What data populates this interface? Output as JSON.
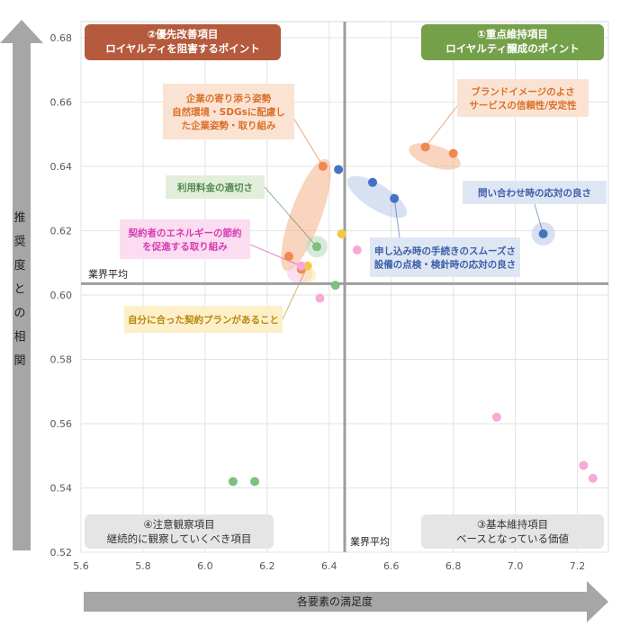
{
  "chart_data": {
    "type": "scatter",
    "xlabel": "各要素の満足度",
    "ylabel_chars": [
      "推",
      "奨",
      "度",
      "と",
      "の",
      "相",
      "関"
    ],
    "xlim": [
      5.6,
      7.3
    ],
    "ylim": [
      0.52,
      0.685
    ],
    "x_ticks": [
      5.6,
      5.8,
      6.0,
      6.2,
      6.4,
      6.6,
      6.8,
      7.0,
      7.2
    ],
    "y_ticks": [
      0.52,
      0.54,
      0.56,
      0.58,
      0.6,
      0.62,
      0.64,
      0.66,
      0.68
    ],
    "x_tick_labels": [
      "5.6",
      "5.8",
      "6.0",
      "6.2",
      "6.4",
      "6.6",
      "6.8",
      "7.0",
      "7.2"
    ],
    "y_tick_labels": [
      "0.52",
      "0.54",
      "0.56",
      "0.58",
      "0.60",
      "0.62",
      "0.64",
      "0.66",
      "0.68"
    ],
    "x_average": 6.45,
    "y_average": 0.6035,
    "average_label_x": "業界平均",
    "average_label_y": "業界平均",
    "quadrants": [
      {
        "id": "q2",
        "title": "②優先改善項目",
        "subtitle": "ロイヤルティを阻害するポイント",
        "color": "#b55a3c"
      },
      {
        "id": "q1",
        "title": "①重点維持項目",
        "subtitle": "ロイヤルティ醸成のポイント",
        "color": "#74a04a"
      },
      {
        "id": "q4",
        "title": "④注意観察項目",
        "subtitle": "継続的に観察していくべき項目",
        "color": "#e5e5e5"
      },
      {
        "id": "q3",
        "title": "③基本維持項目",
        "subtitle": "ベースとなっている価値",
        "color": "#e5e5e5"
      }
    ],
    "series": [
      {
        "name": "orange",
        "color": "#f0894f",
        "points": [
          [
            6.38,
            0.64
          ],
          [
            6.27,
            0.612
          ],
          [
            6.31,
            0.608
          ],
          [
            6.71,
            0.646
          ],
          [
            6.8,
            0.644
          ]
        ]
      },
      {
        "name": "blue",
        "color": "#4472c4",
        "points": [
          [
            6.43,
            0.639
          ],
          [
            6.54,
            0.635
          ],
          [
            6.61,
            0.63
          ],
          [
            7.09,
            0.619
          ]
        ]
      },
      {
        "name": "green",
        "color": "#7fbf7f",
        "points": [
          [
            6.36,
            0.615
          ],
          [
            6.42,
            0.603
          ],
          [
            6.09,
            0.542
          ],
          [
            6.16,
            0.542
          ]
        ]
      },
      {
        "name": "yellow",
        "color": "#f5c842",
        "points": [
          [
            6.33,
            0.609
          ],
          [
            6.44,
            0.619
          ]
        ]
      },
      {
        "name": "pink",
        "color": "#f8a9d5",
        "points": [
          [
            6.31,
            0.609
          ],
          [
            6.37,
            0.599
          ],
          [
            6.49,
            0.614
          ],
          [
            6.94,
            0.562
          ],
          [
            7.22,
            0.547
          ],
          [
            7.25,
            0.543
          ]
        ]
      }
    ],
    "annotations": [
      {
        "id": "corporate",
        "lines": [
          "企業の寄り添う姿勢",
          "自然環境・SDGsに配慮し",
          "た企業姿勢・取り組み"
        ],
        "color": "#d9702a",
        "bg": "#fbe3d3"
      },
      {
        "id": "brand",
        "lines": [
          "ブランドイメージのよさ",
          "サービスの信頼性/安定性"
        ],
        "color": "#d9702a",
        "bg": "#fbe3d3"
      },
      {
        "id": "price",
        "lines": [
          "利用料金の適切さ"
        ],
        "color": "#4f8a4f",
        "bg": "#e2eedb"
      },
      {
        "id": "inquiry",
        "lines": [
          "問い合わせ時の応対の良さ"
        ],
        "color": "#3a5fa8",
        "bg": "#dfe6f3"
      },
      {
        "id": "energy",
        "lines": [
          "契約者のエネルギーの節約",
          "を促進する取り組み"
        ],
        "color": "#d63cb0",
        "bg": "#fbdcf1"
      },
      {
        "id": "application",
        "lines": [
          "申し込み時の手続きのスムーズさ",
          "設備の点検・検針時の応対の良さ"
        ],
        "color": "#3a5fa8",
        "bg": "#dfe6f3"
      },
      {
        "id": "plan",
        "lines": [
          "自分に合った契約プランがあること"
        ],
        "color": "#b8860b",
        "bg": "#fdf0c8"
      }
    ]
  }
}
